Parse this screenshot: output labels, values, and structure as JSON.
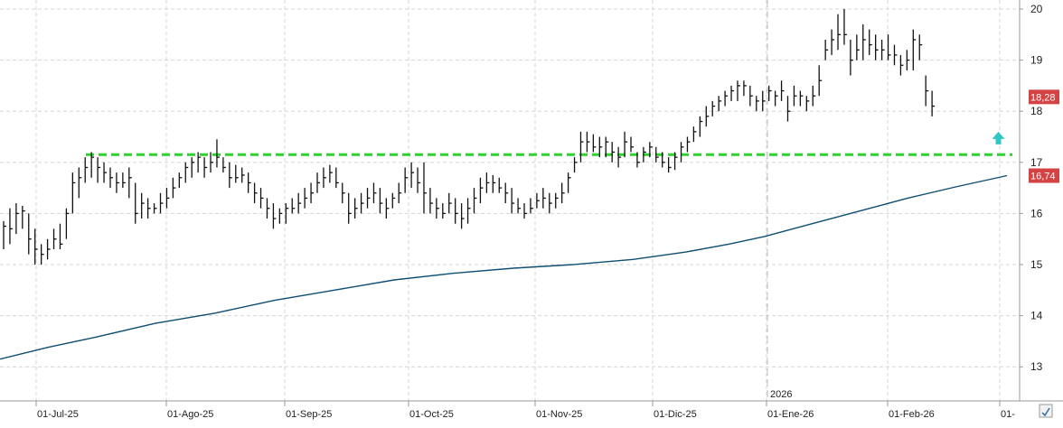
{
  "chart_data": {
    "type": "bar",
    "subtype": "ohlc",
    "grid": true,
    "x_tick_labels": [
      "01-Jul-25",
      "01-Ago-25",
      "01-Sep-25",
      "01-Oct-25",
      "01-Nov-25",
      "01-Dic-25",
      "01-Ene-26",
      "01-Feb-26",
      "01-"
    ],
    "year_marker": "2026",
    "y_ticks": [
      13,
      14,
      15,
      16,
      17,
      18,
      19,
      20
    ],
    "ylim": [
      12.1,
      20.1
    ],
    "price_badge": "18,28",
    "ma_badge": "16,74",
    "resistance_level": 17.15,
    "moving_average": {
      "start": 13.15,
      "points": [
        [
          0,
          13.15
        ],
        [
          40,
          13.38
        ],
        [
          80,
          13.58
        ],
        [
          130,
          13.85
        ],
        [
          180,
          14.05
        ],
        [
          230,
          14.3
        ],
        [
          280,
          14.5
        ],
        [
          330,
          14.7
        ],
        [
          380,
          14.83
        ],
        [
          430,
          14.93
        ],
        [
          480,
          15.0
        ],
        [
          530,
          15.1
        ],
        [
          575,
          15.25
        ],
        [
          610,
          15.4
        ],
        [
          640,
          15.55
        ],
        [
          680,
          15.8
        ],
        [
          720,
          16.05
        ],
        [
          760,
          16.3
        ],
        [
          800,
          16.52
        ],
        [
          843,
          16.74
        ]
      ]
    },
    "ohlc": [
      [
        15.85,
        15.3,
        15.75
      ],
      [
        16.1,
        15.4,
        15.7
      ],
      [
        16.2,
        15.6,
        16.0
      ],
      [
        16.15,
        15.7,
        16.05
      ],
      [
        16.0,
        15.2,
        15.5
      ],
      [
        15.7,
        15.0,
        15.3
      ],
      [
        15.4,
        15.0,
        15.2
      ],
      [
        15.5,
        15.1,
        15.3
      ],
      [
        15.7,
        15.3,
        15.5
      ],
      [
        15.8,
        15.3,
        15.4
      ],
      [
        16.1,
        15.5,
        16.0
      ],
      [
        16.8,
        16.0,
        16.6
      ],
      [
        16.9,
        16.3,
        16.7
      ],
      [
        17.1,
        16.6,
        16.9
      ],
      [
        17.2,
        16.7,
        17.1
      ],
      [
        17.1,
        16.6,
        16.9
      ],
      [
        17.0,
        16.6,
        16.8
      ],
      [
        16.9,
        16.5,
        16.7
      ],
      [
        16.8,
        16.4,
        16.6
      ],
      [
        16.8,
        16.5,
        16.6
      ],
      [
        16.9,
        16.3,
        16.7
      ],
      [
        16.6,
        15.8,
        16.0
      ],
      [
        16.4,
        15.9,
        16.2
      ],
      [
        16.3,
        15.9,
        16.1
      ],
      [
        16.2,
        16.0,
        16.1
      ],
      [
        16.4,
        16.0,
        16.2
      ],
      [
        16.5,
        16.1,
        16.3
      ],
      [
        16.7,
        16.3,
        16.5
      ],
      [
        16.8,
        16.5,
        16.7
      ],
      [
        17.0,
        16.6,
        16.9
      ],
      [
        17.1,
        16.7,
        17.0
      ],
      [
        17.2,
        16.8,
        17.1
      ],
      [
        17.1,
        16.7,
        16.9
      ],
      [
        17.2,
        16.8,
        17.0
      ],
      [
        17.45,
        16.9,
        17.1
      ],
      [
        17.1,
        16.8,
        16.9
      ],
      [
        17.0,
        16.5,
        16.7
      ],
      [
        16.95,
        16.6,
        16.7
      ],
      [
        16.9,
        16.6,
        16.75
      ],
      [
        16.8,
        16.4,
        16.6
      ],
      [
        16.6,
        16.2,
        16.4
      ],
      [
        16.5,
        16.1,
        16.3
      ],
      [
        16.3,
        15.9,
        16.1
      ],
      [
        16.2,
        15.7,
        15.9
      ],
      [
        16.1,
        15.8,
        16.0
      ],
      [
        16.2,
        15.8,
        16.1
      ],
      [
        16.3,
        16.0,
        16.1
      ],
      [
        16.4,
        16.0,
        16.2
      ],
      [
        16.5,
        16.1,
        16.3
      ],
      [
        16.6,
        16.2,
        16.4
      ],
      [
        16.8,
        16.4,
        16.6
      ],
      [
        16.9,
        16.5,
        16.7
      ],
      [
        16.95,
        16.6,
        16.8
      ],
      [
        16.9,
        16.5,
        16.6
      ],
      [
        16.6,
        16.2,
        16.4
      ],
      [
        16.4,
        15.8,
        16.0
      ],
      [
        16.3,
        15.9,
        16.1
      ],
      [
        16.4,
        16.0,
        16.2
      ],
      [
        16.5,
        16.1,
        16.3
      ],
      [
        16.6,
        16.2,
        16.4
      ],
      [
        16.5,
        16.0,
        16.2
      ],
      [
        16.3,
        15.9,
        16.1
      ],
      [
        16.4,
        16.1,
        16.3
      ],
      [
        16.6,
        16.2,
        16.4
      ],
      [
        16.9,
        16.4,
        16.7
      ],
      [
        17.0,
        16.5,
        16.8
      ],
      [
        16.9,
        16.4,
        16.6
      ],
      [
        17.0,
        16.0,
        16.4
      ],
      [
        16.5,
        16.0,
        16.2
      ],
      [
        16.3,
        15.9,
        16.1
      ],
      [
        16.2,
        15.9,
        16.0
      ],
      [
        16.4,
        16.0,
        16.2
      ],
      [
        16.3,
        15.8,
        16.0
      ],
      [
        16.2,
        15.7,
        15.9
      ],
      [
        16.3,
        15.8,
        16.1
      ],
      [
        16.5,
        16.0,
        16.3
      ],
      [
        16.7,
        16.2,
        16.5
      ],
      [
        16.8,
        16.4,
        16.6
      ],
      [
        16.75,
        16.4,
        16.6
      ],
      [
        16.7,
        16.4,
        16.5
      ],
      [
        16.6,
        16.2,
        16.4
      ],
      [
        16.5,
        16.0,
        16.2
      ],
      [
        16.3,
        16.0,
        16.1
      ],
      [
        16.2,
        15.9,
        16.0
      ],
      [
        16.3,
        16.0,
        16.1
      ],
      [
        16.4,
        16.1,
        16.25
      ],
      [
        16.5,
        16.1,
        16.3
      ],
      [
        16.4,
        16.0,
        16.2
      ],
      [
        16.4,
        16.1,
        16.3
      ],
      [
        16.6,
        16.2,
        16.4
      ],
      [
        16.8,
        16.4,
        16.7
      ],
      [
        17.1,
        16.8,
        17.0
      ],
      [
        17.6,
        17.0,
        17.4
      ],
      [
        17.6,
        17.2,
        17.4
      ],
      [
        17.55,
        17.2,
        17.3
      ],
      [
        17.5,
        17.1,
        17.3
      ],
      [
        17.5,
        17.1,
        17.4
      ],
      [
        17.4,
        17.0,
        17.2
      ],
      [
        17.3,
        16.9,
        17.1
      ],
      [
        17.6,
        17.1,
        17.4
      ],
      [
        17.5,
        17.2,
        17.3
      ],
      [
        17.2,
        16.9,
        17.0
      ],
      [
        17.3,
        17.0,
        17.2
      ],
      [
        17.4,
        17.1,
        17.3
      ],
      [
        17.3,
        17.0,
        17.1
      ],
      [
        17.2,
        16.9,
        17.0
      ],
      [
        17.1,
        16.8,
        16.9
      ],
      [
        17.2,
        16.85,
        17.1
      ],
      [
        17.4,
        17.0,
        17.3
      ],
      [
        17.5,
        17.2,
        17.4
      ],
      [
        17.7,
        17.4,
        17.6
      ],
      [
        17.9,
        17.5,
        17.8
      ],
      [
        18.1,
        17.7,
        17.9
      ],
      [
        18.2,
        17.9,
        18.1
      ],
      [
        18.3,
        18.0,
        18.2
      ],
      [
        18.4,
        18.1,
        18.3
      ],
      [
        18.5,
        18.2,
        18.4
      ],
      [
        18.6,
        18.2,
        18.5
      ],
      [
        18.6,
        18.3,
        18.5
      ],
      [
        18.5,
        18.1,
        18.3
      ],
      [
        18.3,
        18.0,
        18.2
      ],
      [
        18.4,
        18.0,
        18.2
      ],
      [
        18.5,
        18.2,
        18.4
      ],
      [
        18.4,
        18.1,
        18.3
      ],
      [
        18.6,
        18.2,
        18.4
      ],
      [
        18.3,
        17.8,
        18.0
      ],
      [
        18.5,
        18.1,
        18.3
      ],
      [
        18.4,
        18.1,
        18.3
      ],
      [
        18.3,
        18.0,
        18.2
      ],
      [
        18.5,
        18.1,
        18.3
      ],
      [
        18.9,
        18.3,
        18.6
      ],
      [
        19.4,
        19.0,
        19.2
      ],
      [
        19.6,
        19.1,
        19.4
      ],
      [
        19.9,
        19.2,
        19.5
      ],
      [
        20.0,
        19.3,
        19.5
      ],
      [
        19.4,
        18.7,
        19.0
      ],
      [
        19.5,
        19.0,
        19.2
      ],
      [
        19.7,
        19.0,
        19.4
      ],
      [
        19.6,
        19.1,
        19.3
      ],
      [
        19.5,
        19.0,
        19.2
      ],
      [
        19.4,
        19.0,
        19.2
      ],
      [
        19.5,
        19.0,
        19.1
      ],
      [
        19.3,
        18.9,
        19.1
      ],
      [
        19.1,
        18.7,
        18.9
      ],
      [
        19.2,
        18.8,
        19.0
      ],
      [
        19.6,
        18.8,
        19.4
      ],
      [
        19.5,
        19.0,
        19.3
      ],
      [
        18.7,
        18.1,
        18.4
      ],
      [
        18.4,
        17.9,
        18.1
      ]
    ],
    "arrow": {
      "x_index": 158,
      "y": 17.6
    }
  },
  "colors": {
    "bars": "#111111",
    "resistance": "#2fd12f",
    "moving_average": "#0f4e73",
    "grid": "#d6d6d6",
    "badge_bg": "#d44343",
    "badge_text": "#ffffff",
    "arrow": "#2fc6c6",
    "axis_text": "#222222"
  }
}
